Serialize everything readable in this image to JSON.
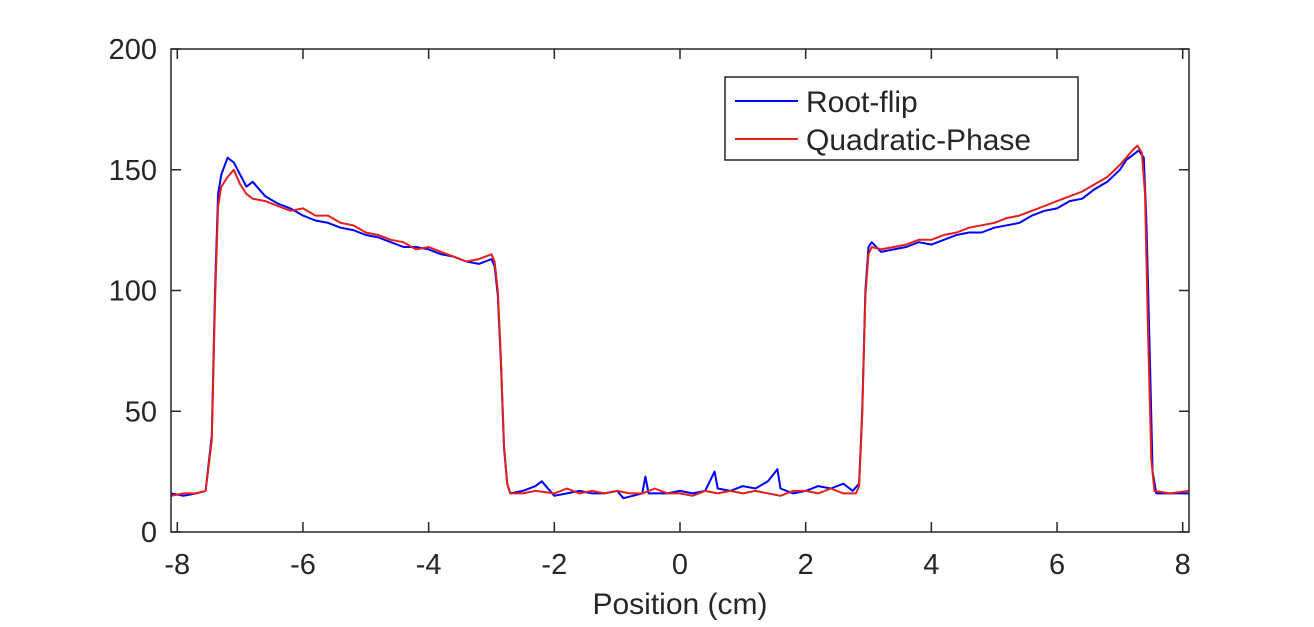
{
  "chart_data": {
    "type": "line",
    "title": "",
    "xlabel": "Position (cm)",
    "ylabel": "",
    "xlim": [
      -8.1,
      8.1
    ],
    "ylim": [
      0,
      200
    ],
    "xticks": [
      -8,
      -6,
      -4,
      -2,
      0,
      2,
      4,
      6,
      8
    ],
    "yticks": [
      0,
      50,
      100,
      150,
      200
    ],
    "grid": false,
    "legend_position": "top-right",
    "series": [
      {
        "name": "Root-flip",
        "color": "#0000ff",
        "points": [
          [
            -8.1,
            16
          ],
          [
            -7.9,
            15
          ],
          [
            -7.7,
            16
          ],
          [
            -7.55,
            17
          ],
          [
            -7.45,
            40
          ],
          [
            -7.4,
            100
          ],
          [
            -7.35,
            140
          ],
          [
            -7.3,
            148
          ],
          [
            -7.2,
            155
          ],
          [
            -7.1,
            153
          ],
          [
            -7.0,
            148
          ],
          [
            -6.9,
            143
          ],
          [
            -6.8,
            145
          ],
          [
            -6.6,
            139
          ],
          [
            -6.4,
            136
          ],
          [
            -6.2,
            134
          ],
          [
            -6.0,
            131
          ],
          [
            -5.8,
            129
          ],
          [
            -5.6,
            128
          ],
          [
            -5.4,
            126
          ],
          [
            -5.2,
            125
          ],
          [
            -5.0,
            123
          ],
          [
            -4.8,
            122
          ],
          [
            -4.6,
            120
          ],
          [
            -4.4,
            118
          ],
          [
            -4.2,
            118
          ],
          [
            -4.0,
            117
          ],
          [
            -3.8,
            115
          ],
          [
            -3.6,
            114
          ],
          [
            -3.4,
            112
          ],
          [
            -3.2,
            111
          ],
          [
            -3.0,
            113
          ],
          [
            -2.95,
            110
          ],
          [
            -2.9,
            98
          ],
          [
            -2.85,
            70
          ],
          [
            -2.8,
            35
          ],
          [
            -2.75,
            20
          ],
          [
            -2.7,
            16
          ],
          [
            -2.5,
            17
          ],
          [
            -2.3,
            19
          ],
          [
            -2.2,
            21
          ],
          [
            -2.0,
            15
          ],
          [
            -1.8,
            16
          ],
          [
            -1.6,
            17
          ],
          [
            -1.4,
            16
          ],
          [
            -1.2,
            16
          ],
          [
            -1.0,
            17
          ],
          [
            -0.9,
            14
          ],
          [
            -0.6,
            16
          ],
          [
            -0.55,
            23
          ],
          [
            -0.5,
            16
          ],
          [
            -0.2,
            16
          ],
          [
            0.0,
            17
          ],
          [
            0.2,
            16
          ],
          [
            0.4,
            17
          ],
          [
            0.55,
            25
          ],
          [
            0.6,
            18
          ],
          [
            0.8,
            17
          ],
          [
            1.0,
            19
          ],
          [
            1.2,
            18
          ],
          [
            1.4,
            21
          ],
          [
            1.55,
            26
          ],
          [
            1.6,
            18
          ],
          [
            1.8,
            16
          ],
          [
            2.0,
            17
          ],
          [
            2.2,
            19
          ],
          [
            2.4,
            18
          ],
          [
            2.6,
            20
          ],
          [
            2.75,
            17
          ],
          [
            2.85,
            20
          ],
          [
            2.9,
            50
          ],
          [
            2.95,
            100
          ],
          [
            3.0,
            118
          ],
          [
            3.05,
            120
          ],
          [
            3.2,
            116
          ],
          [
            3.4,
            117
          ],
          [
            3.6,
            118
          ],
          [
            3.8,
            120
          ],
          [
            4.0,
            119
          ],
          [
            4.2,
            121
          ],
          [
            4.4,
            123
          ],
          [
            4.6,
            124
          ],
          [
            4.8,
            124
          ],
          [
            5.0,
            126
          ],
          [
            5.2,
            127
          ],
          [
            5.4,
            128
          ],
          [
            5.6,
            131
          ],
          [
            5.8,
            133
          ],
          [
            6.0,
            134
          ],
          [
            6.2,
            137
          ],
          [
            6.4,
            138
          ],
          [
            6.6,
            142
          ],
          [
            6.8,
            145
          ],
          [
            7.0,
            150
          ],
          [
            7.1,
            154
          ],
          [
            7.2,
            156
          ],
          [
            7.3,
            158
          ],
          [
            7.38,
            155
          ],
          [
            7.42,
            130
          ],
          [
            7.48,
            70
          ],
          [
            7.52,
            25
          ],
          [
            7.58,
            16
          ],
          [
            7.8,
            16
          ],
          [
            8.1,
            16
          ]
        ]
      },
      {
        "name": "Quadratic-Phase",
        "color": "#e3201b",
        "points": [
          [
            -8.1,
            15
          ],
          [
            -7.9,
            16
          ],
          [
            -7.7,
            16
          ],
          [
            -7.55,
            17
          ],
          [
            -7.45,
            38
          ],
          [
            -7.4,
            95
          ],
          [
            -7.35,
            135
          ],
          [
            -7.3,
            143
          ],
          [
            -7.2,
            147
          ],
          [
            -7.1,
            150
          ],
          [
            -7.0,
            144
          ],
          [
            -6.9,
            140
          ],
          [
            -6.8,
            138
          ],
          [
            -6.6,
            137
          ],
          [
            -6.4,
            135
          ],
          [
            -6.2,
            133
          ],
          [
            -6.0,
            134
          ],
          [
            -5.8,
            131
          ],
          [
            -5.6,
            131
          ],
          [
            -5.4,
            128
          ],
          [
            -5.2,
            127
          ],
          [
            -5.0,
            124
          ],
          [
            -4.8,
            123
          ],
          [
            -4.6,
            121
          ],
          [
            -4.4,
            120
          ],
          [
            -4.2,
            117
          ],
          [
            -4.0,
            118
          ],
          [
            -3.8,
            116
          ],
          [
            -3.6,
            114
          ],
          [
            -3.4,
            112
          ],
          [
            -3.2,
            113
          ],
          [
            -3.0,
            115
          ],
          [
            -2.95,
            112
          ],
          [
            -2.9,
            100
          ],
          [
            -2.85,
            72
          ],
          [
            -2.8,
            36
          ],
          [
            -2.75,
            20
          ],
          [
            -2.7,
            16
          ],
          [
            -2.5,
            16
          ],
          [
            -2.3,
            17
          ],
          [
            -2.0,
            16
          ],
          [
            -1.8,
            18
          ],
          [
            -1.6,
            16
          ],
          [
            -1.4,
            17
          ],
          [
            -1.2,
            16
          ],
          [
            -1.0,
            17
          ],
          [
            -0.8,
            16
          ],
          [
            -0.6,
            16
          ],
          [
            -0.4,
            18
          ],
          [
            -0.2,
            16
          ],
          [
            0.0,
            16
          ],
          [
            0.2,
            15
          ],
          [
            0.4,
            17
          ],
          [
            0.6,
            16
          ],
          [
            0.8,
            17
          ],
          [
            1.0,
            16
          ],
          [
            1.2,
            17
          ],
          [
            1.4,
            16
          ],
          [
            1.6,
            15
          ],
          [
            1.8,
            17
          ],
          [
            2.0,
            17
          ],
          [
            2.2,
            16
          ],
          [
            2.4,
            18
          ],
          [
            2.6,
            16
          ],
          [
            2.8,
            16
          ],
          [
            2.85,
            19
          ],
          [
            2.9,
            48
          ],
          [
            2.95,
            98
          ],
          [
            3.0,
            115
          ],
          [
            3.05,
            118
          ],
          [
            3.2,
            117
          ],
          [
            3.4,
            118
          ],
          [
            3.6,
            119
          ],
          [
            3.8,
            121
          ],
          [
            4.0,
            121
          ],
          [
            4.2,
            123
          ],
          [
            4.4,
            124
          ],
          [
            4.6,
            126
          ],
          [
            4.8,
            127
          ],
          [
            5.0,
            128
          ],
          [
            5.2,
            130
          ],
          [
            5.4,
            131
          ],
          [
            5.6,
            133
          ],
          [
            5.8,
            135
          ],
          [
            6.0,
            137
          ],
          [
            6.2,
            139
          ],
          [
            6.4,
            141
          ],
          [
            6.6,
            144
          ],
          [
            6.8,
            147
          ],
          [
            7.0,
            152
          ],
          [
            7.1,
            155
          ],
          [
            7.2,
            158
          ],
          [
            7.28,
            160
          ],
          [
            7.35,
            157
          ],
          [
            7.4,
            140
          ],
          [
            7.45,
            80
          ],
          [
            7.5,
            30
          ],
          [
            7.55,
            17
          ],
          [
            7.8,
            16
          ],
          [
            8.1,
            17
          ]
        ]
      }
    ]
  }
}
